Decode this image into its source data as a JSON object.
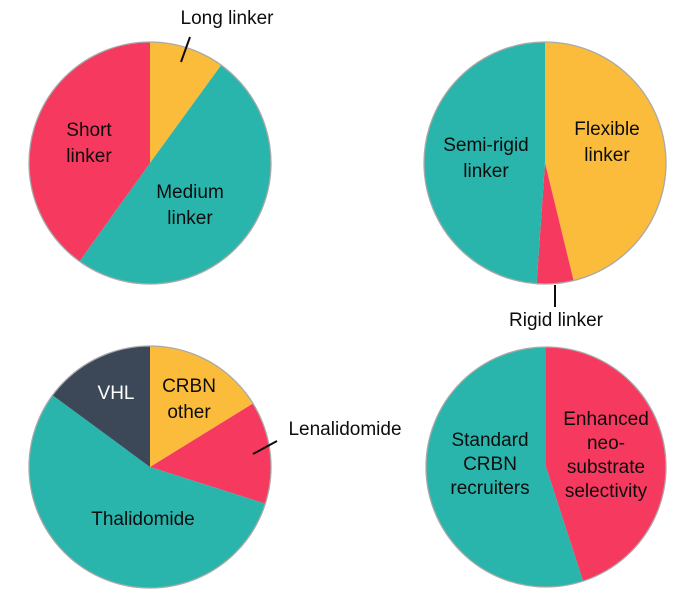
{
  "style": {
    "background": "#ffffff",
    "text_color": "#0d0d0d",
    "text_color_inverse": "#ffffff",
    "pie_outline_color": "#a9a9a9",
    "leader_line_color": "#0d0d0d",
    "palette": {
      "teal": "#2ab5ac",
      "red": "#f5395f",
      "amber": "#fbbc3c",
      "slate": "#3c4858"
    }
  },
  "chart_data": [
    {
      "type": "pie",
      "name": "linker-length-distribution",
      "legend": "none",
      "labels_on": "slices",
      "slices": [
        {
          "label": "Long linker",
          "pct": 10.0,
          "color": "#fbbc3c",
          "display": "Long linker",
          "label_position": "outside"
        },
        {
          "label": "Medium linker",
          "pct": 49.9,
          "color": "#2ab5ac",
          "display": "Medium\nlinker",
          "label_position": "inside"
        },
        {
          "label": "Short linker",
          "pct": 40.1,
          "color": "#f5395f",
          "display": "Short\nlinker",
          "label_position": "inside"
        }
      ]
    },
    {
      "type": "pie",
      "name": "linker-rigidity-distribution",
      "legend": "none",
      "labels_on": "slices",
      "slices": [
        {
          "label": "Flexible linker",
          "pct": 46.2,
          "color": "#fbbc3c",
          "display": "Flexible\nlinker",
          "label_position": "inside"
        },
        {
          "label": "Rigid linker",
          "pct": 4.9,
          "color": "#f5395f",
          "display": "Rigid linker",
          "label_position": "outside"
        },
        {
          "label": "Semi-rigid linker",
          "pct": 48.9,
          "color": "#2ab5ac",
          "display": "Semi-rigid\nlinker",
          "label_position": "inside"
        }
      ]
    },
    {
      "type": "pie",
      "name": "e3-ligand-distribution",
      "legend": "none",
      "labels_on": "slices",
      "slices": [
        {
          "label": "CRBN other",
          "pct": 16.2,
          "color": "#fbbc3c",
          "display": "CRBN\nother",
          "label_position": "inside"
        },
        {
          "label": "Lenalidomide",
          "pct": 13.7,
          "color": "#f5395f",
          "display": "Lenalidomide",
          "label_position": "outside"
        },
        {
          "label": "Thalidomide",
          "pct": 55.2,
          "color": "#2ab5ac",
          "display": "Thalidomide",
          "label_position": "inside"
        },
        {
          "label": "VHL",
          "pct": 14.9,
          "color": "#3c4858",
          "display": "VHL",
          "label_position": "inside"
        }
      ]
    },
    {
      "type": "pie",
      "name": "crbn-recruiter-selectivity",
      "legend": "none",
      "labels_on": "slices",
      "slices": [
        {
          "label": "Enhanced neo-substrate selectivity",
          "pct": 45.0,
          "color": "#f5395f",
          "display": "Enhanced\nneo-\nsubstrate\nselectivity",
          "label_position": "inside"
        },
        {
          "label": "Standard CRBN recruiters",
          "pct": 55.0,
          "color": "#2ab5ac",
          "display": "Standard\nCRBN\nrecruiters",
          "label_position": "inside"
        }
      ]
    }
  ]
}
